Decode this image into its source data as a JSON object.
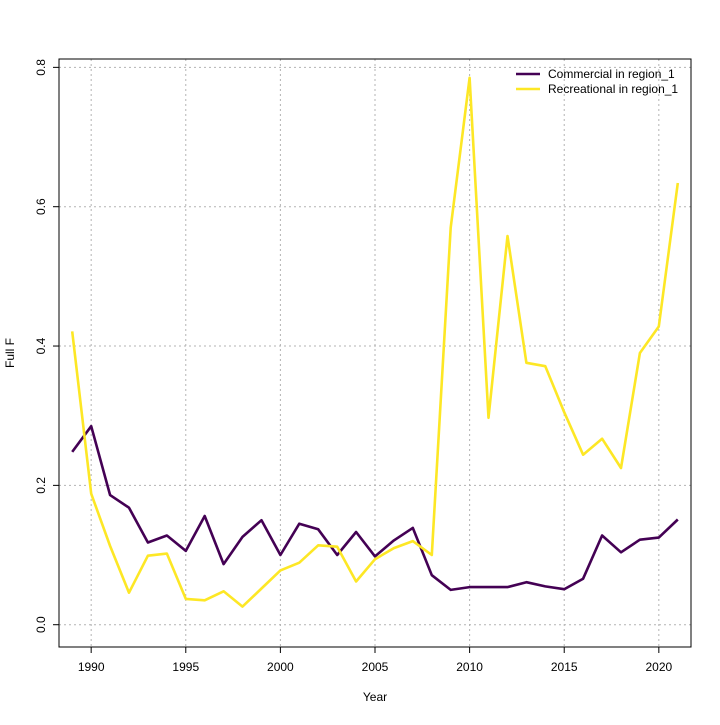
{
  "chart_data": {
    "type": "line",
    "title": "",
    "xlabel": "Year",
    "ylabel": "Full F",
    "xlim": [
      1988.3,
      1921.7
    ],
    "ylim": [
      -0.032,
      0.812
    ],
    "x_ticks": [
      1990,
      1995,
      2000,
      2005,
      2010,
      2015,
      2020
    ],
    "x_tick_labels": [
      "1990",
      "1995",
      "2000",
      "2005",
      "2010",
      "2015",
      "2020"
    ],
    "y_ticks": [
      0.0,
      0.2,
      0.4,
      0.6,
      0.8
    ],
    "y_tick_labels": [
      "0.0",
      "0.2",
      "0.4",
      "0.6",
      "0.8"
    ],
    "grid": true,
    "legend_position": "top-right",
    "x": [
      1989,
      1990,
      1991,
      1992,
      1993,
      1994,
      1995,
      1996,
      1997,
      1998,
      1999,
      2000,
      2001,
      2002,
      2003,
      2004,
      2005,
      2006,
      2007,
      2008,
      2009,
      2010,
      2011,
      2012,
      2013,
      2014,
      2015,
      2016,
      2017,
      2018,
      2019,
      2020,
      2021
    ],
    "series": [
      {
        "name": "Commercial in region_1",
        "color": "#440154",
        "values": [
          0.248,
          0.285,
          0.186,
          0.168,
          0.118,
          0.128,
          0.106,
          0.156,
          0.087,
          0.126,
          0.15,
          0.1,
          0.145,
          0.137,
          0.1,
          0.133,
          0.098,
          0.121,
          0.139,
          0.071,
          0.05,
          0.054,
          0.054,
          0.054,
          0.061,
          0.055,
          0.051,
          0.066,
          0.128,
          0.104,
          0.122,
          0.125,
          0.151
        ]
      },
      {
        "name": "Recreational in region_1",
        "color": "#FDE725",
        "values": [
          0.421,
          0.188,
          0.113,
          0.046,
          0.099,
          0.102,
          0.037,
          0.035,
          0.048,
          0.026,
          0.052,
          0.078,
          0.089,
          0.114,
          0.112,
          0.062,
          0.094,
          0.11,
          0.12,
          0.1,
          0.57,
          0.785,
          0.297,
          0.558,
          0.376,
          0.371,
          0.305,
          0.244,
          0.267,
          0.225,
          0.39,
          0.428,
          0.634
        ]
      }
    ]
  }
}
